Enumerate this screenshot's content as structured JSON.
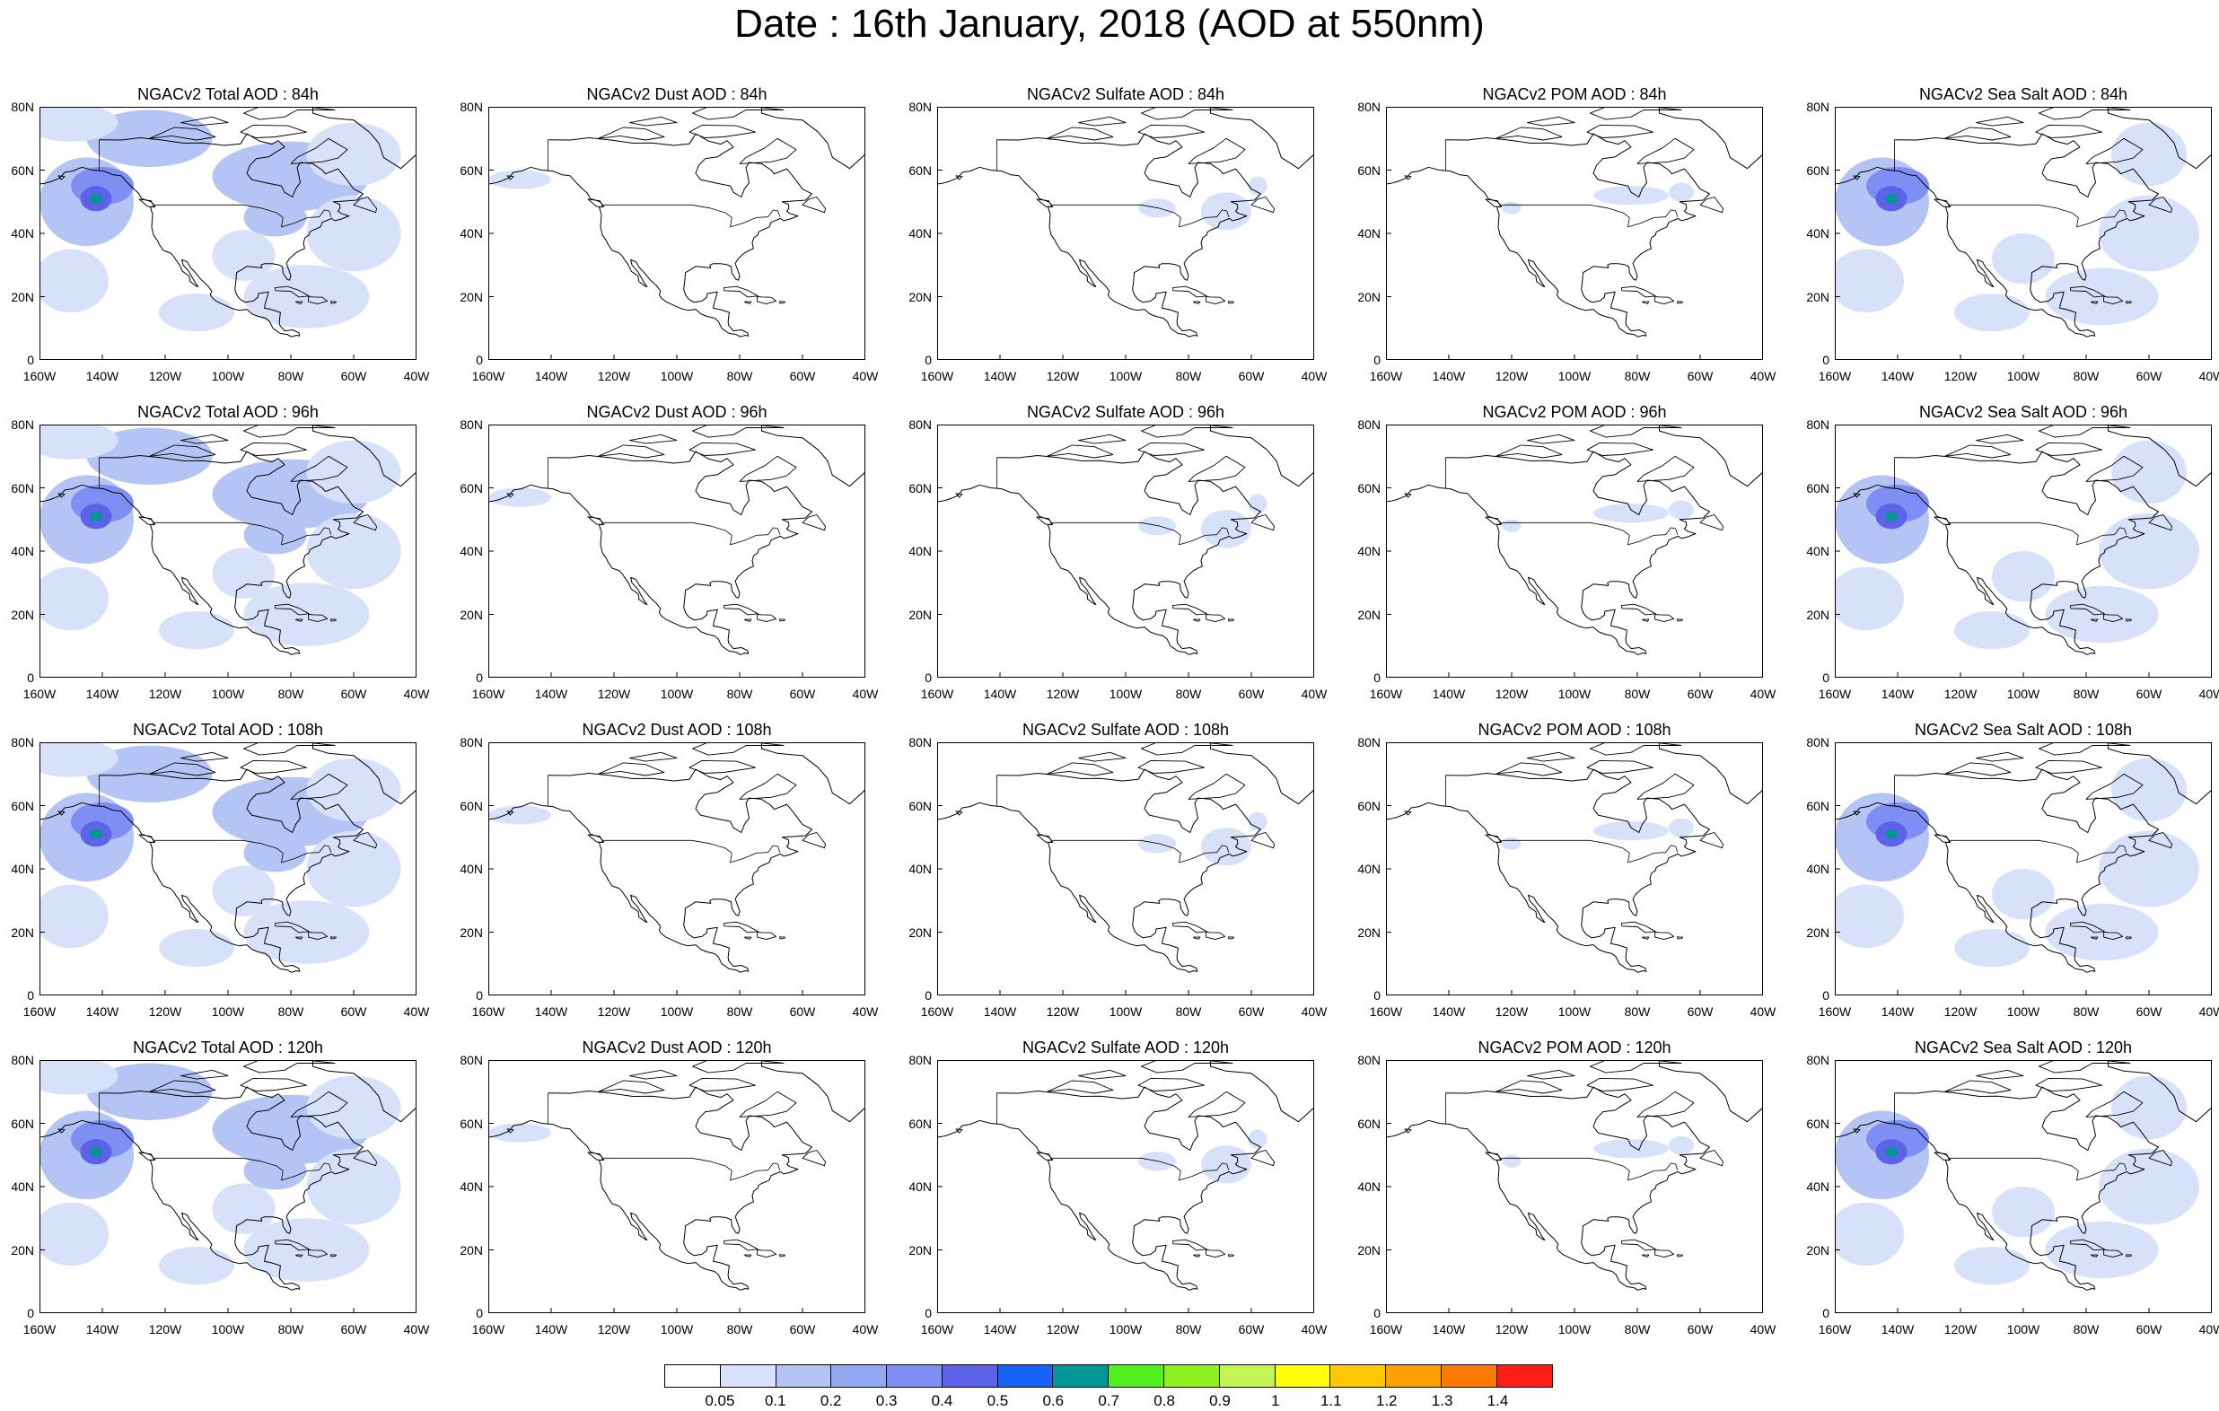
{
  "title": "Date : 16th January, 2018 (AOD at 550nm)",
  "y_ticks": [
    "0",
    "20N",
    "40N",
    "60N",
    "80N"
  ],
  "x_ticks": [
    "160W",
    "140W",
    "120W",
    "100W",
    "80W",
    "60W",
    "40W"
  ],
  "panels": [
    {
      "title": "NGACv2 Total AOD : 84h",
      "species": "total",
      "hour": 84
    },
    {
      "title": "NGACv2 Dust AOD : 84h",
      "species": "dust",
      "hour": 84
    },
    {
      "title": "NGACv2 Sulfate AOD : 84h",
      "species": "sulfate",
      "hour": 84
    },
    {
      "title": "NGACv2 POM AOD : 84h",
      "species": "pom",
      "hour": 84
    },
    {
      "title": "NGACv2 Sea Salt AOD : 84h",
      "species": "seasalt",
      "hour": 84
    },
    {
      "title": "NGACv2 Total AOD : 96h",
      "species": "total",
      "hour": 96
    },
    {
      "title": "NGACv2 Dust AOD : 96h",
      "species": "dust",
      "hour": 96
    },
    {
      "title": "NGACv2 Sulfate AOD : 96h",
      "species": "sulfate",
      "hour": 96
    },
    {
      "title": "NGACv2 POM AOD : 96h",
      "species": "pom",
      "hour": 96
    },
    {
      "title": "NGACv2 Sea Salt AOD : 96h",
      "species": "seasalt",
      "hour": 96
    },
    {
      "title": "NGACv2 Total AOD : 108h",
      "species": "total",
      "hour": 108
    },
    {
      "title": "NGACv2 Dust AOD : 108h",
      "species": "dust",
      "hour": 108
    },
    {
      "title": "NGACv2 Sulfate AOD : 108h",
      "species": "sulfate",
      "hour": 108
    },
    {
      "title": "NGACv2 POM AOD : 108h",
      "species": "pom",
      "hour": 108
    },
    {
      "title": "NGACv2 Sea Salt AOD : 108h",
      "species": "seasalt",
      "hour": 108
    },
    {
      "title": "NGACv2 Total AOD : 120h",
      "species": "total",
      "hour": 120
    },
    {
      "title": "NGACv2 Dust AOD : 120h",
      "species": "dust",
      "hour": 120
    },
    {
      "title": "NGACv2 Sulfate AOD : 120h",
      "species": "sulfate",
      "hour": 120
    },
    {
      "title": "NGACv2 POM AOD : 120h",
      "species": "pom",
      "hour": 120
    },
    {
      "title": "NGACv2 Sea Salt  AOD : 120h",
      "species": "seasalt",
      "hour": 120
    }
  ],
  "legend": {
    "labels": [
      "0.05",
      "0.1",
      "0.2",
      "0.3",
      "0.4",
      "0.5",
      "0.6",
      "0.7",
      "0.8",
      "0.9",
      "1",
      "1.1",
      "1.2",
      "1.3",
      "1.4"
    ],
    "colors": [
      "#ffffff",
      "#d7e1fa",
      "#b4c4f4",
      "#93a9f2",
      "#7f8ef2",
      "#5c63e8",
      "#1464f5",
      "#009693",
      "#50f01e",
      "#8ef01e",
      "#c3f555",
      "#ffff00",
      "#ffc800",
      "#ffa000",
      "#ff7800",
      "#ff1e14"
    ]
  }
}
